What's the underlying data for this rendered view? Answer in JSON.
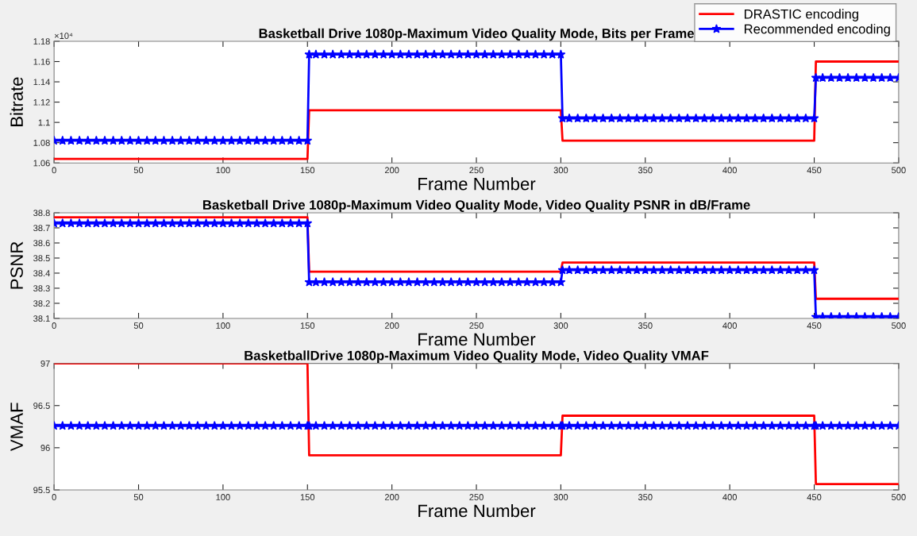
{
  "chart_data": [
    {
      "type": "line",
      "title": "Basketball Drive 1080p-Maximum Video Quality Mode, Bits per Frame",
      "xlabel": "Frame Number",
      "ylabel": "Bitrate",
      "annotations": [
        "×10⁴"
      ],
      "legend": "top right",
      "xlim": [
        0,
        500
      ],
      "xticks": [
        0,
        50,
        100,
        150,
        200,
        250,
        300,
        350,
        400,
        450,
        500
      ],
      "ylim": [
        1.06,
        1.18
      ],
      "yticks": [
        1.06,
        1.08,
        1.1,
        1.12,
        1.14,
        1.16,
        1.18
      ],
      "series": [
        {
          "name": "DRASTIC encoding",
          "color": "#ff0000",
          "marker": "none",
          "x": [
            0,
            150,
            151,
            300,
            301,
            450,
            451,
            500
          ],
          "values": [
            1.064,
            1.064,
            1.112,
            1.112,
            1.082,
            1.082,
            1.16,
            1.16
          ]
        },
        {
          "name": "Recommended encoding",
          "color": "#0000ff",
          "marker": "star",
          "x": [
            0,
            5,
            10,
            15,
            20,
            25,
            30,
            35,
            40,
            45,
            50,
            55,
            60,
            65,
            70,
            75,
            80,
            85,
            90,
            95,
            100,
            105,
            110,
            115,
            120,
            125,
            130,
            135,
            140,
            145,
            150,
            151,
            155,
            160,
            165,
            170,
            175,
            180,
            185,
            190,
            195,
            200,
            205,
            210,
            215,
            220,
            225,
            230,
            235,
            240,
            245,
            250,
            255,
            260,
            265,
            270,
            275,
            280,
            285,
            290,
            295,
            300,
            301,
            305,
            310,
            315,
            320,
            325,
            330,
            335,
            340,
            345,
            350,
            355,
            360,
            365,
            370,
            375,
            380,
            385,
            390,
            395,
            400,
            405,
            410,
            415,
            420,
            425,
            430,
            435,
            440,
            445,
            450,
            451,
            455,
            460,
            465,
            470,
            475,
            480,
            485,
            490,
            495,
            500
          ],
          "values": [
            1.082,
            1.082,
            1.082,
            1.082,
            1.082,
            1.082,
            1.082,
            1.082,
            1.082,
            1.082,
            1.082,
            1.082,
            1.082,
            1.082,
            1.082,
            1.082,
            1.082,
            1.082,
            1.082,
            1.082,
            1.082,
            1.082,
            1.082,
            1.082,
            1.082,
            1.082,
            1.082,
            1.082,
            1.082,
            1.082,
            1.082,
            1.167,
            1.167,
            1.167,
            1.167,
            1.167,
            1.167,
            1.167,
            1.167,
            1.167,
            1.167,
            1.167,
            1.167,
            1.167,
            1.167,
            1.167,
            1.167,
            1.167,
            1.167,
            1.167,
            1.167,
            1.167,
            1.167,
            1.167,
            1.167,
            1.167,
            1.167,
            1.167,
            1.167,
            1.167,
            1.167,
            1.167,
            1.104,
            1.104,
            1.104,
            1.104,
            1.104,
            1.104,
            1.104,
            1.104,
            1.104,
            1.104,
            1.104,
            1.104,
            1.104,
            1.104,
            1.104,
            1.104,
            1.104,
            1.104,
            1.104,
            1.104,
            1.104,
            1.104,
            1.104,
            1.104,
            1.104,
            1.104,
            1.104,
            1.104,
            1.104,
            1.104,
            1.104,
            1.144,
            1.144,
            1.144,
            1.144,
            1.144,
            1.144,
            1.144,
            1.144,
            1.144,
            1.144,
            1.144
          ]
        }
      ]
    },
    {
      "type": "line",
      "title": "Basketball Drive 1080p-Maximum Video Quality Mode, Video Quality PSNR in dB/Frame",
      "xlabel": "Frame Number",
      "ylabel": "PSNR",
      "xlim": [
        0,
        500
      ],
      "xticks": [
        0,
        50,
        100,
        150,
        200,
        250,
        300,
        350,
        400,
        450,
        500
      ],
      "ylim": [
        38.1,
        38.8
      ],
      "yticks": [
        38.1,
        38.2,
        38.3,
        38.4,
        38.5,
        38.6,
        38.7,
        38.8
      ],
      "series": [
        {
          "color": "#ff0000",
          "marker": "none",
          "x": [
            0,
            150,
            151,
            300,
            301,
            450,
            451,
            500
          ],
          "values": [
            38.77,
            38.77,
            38.41,
            38.41,
            38.47,
            38.47,
            38.23,
            38.23
          ]
        },
        {
          "color": "#0000ff",
          "marker": "star",
          "x": [
            0,
            5,
            10,
            15,
            20,
            25,
            30,
            35,
            40,
            45,
            50,
            55,
            60,
            65,
            70,
            75,
            80,
            85,
            90,
            95,
            100,
            105,
            110,
            115,
            120,
            125,
            130,
            135,
            140,
            145,
            150,
            151,
            155,
            160,
            165,
            170,
            175,
            180,
            185,
            190,
            195,
            200,
            205,
            210,
            215,
            220,
            225,
            230,
            235,
            240,
            245,
            250,
            255,
            260,
            265,
            270,
            275,
            280,
            285,
            290,
            295,
            300,
            301,
            305,
            310,
            315,
            320,
            325,
            330,
            335,
            340,
            345,
            350,
            355,
            360,
            365,
            370,
            375,
            380,
            385,
            390,
            395,
            400,
            405,
            410,
            415,
            420,
            425,
            430,
            435,
            440,
            445,
            450,
            451,
            455,
            460,
            465,
            470,
            475,
            480,
            485,
            490,
            495,
            500
          ],
          "values": [
            38.73,
            38.73,
            38.73,
            38.73,
            38.73,
            38.73,
            38.73,
            38.73,
            38.73,
            38.73,
            38.73,
            38.73,
            38.73,
            38.73,
            38.73,
            38.73,
            38.73,
            38.73,
            38.73,
            38.73,
            38.73,
            38.73,
            38.73,
            38.73,
            38.73,
            38.73,
            38.73,
            38.73,
            38.73,
            38.73,
            38.73,
            38.34,
            38.34,
            38.34,
            38.34,
            38.34,
            38.34,
            38.34,
            38.34,
            38.34,
            38.34,
            38.34,
            38.34,
            38.34,
            38.34,
            38.34,
            38.34,
            38.34,
            38.34,
            38.34,
            38.34,
            38.34,
            38.34,
            38.34,
            38.34,
            38.34,
            38.34,
            38.34,
            38.34,
            38.34,
            38.34,
            38.34,
            38.42,
            38.42,
            38.42,
            38.42,
            38.42,
            38.42,
            38.42,
            38.42,
            38.42,
            38.42,
            38.42,
            38.42,
            38.42,
            38.42,
            38.42,
            38.42,
            38.42,
            38.42,
            38.42,
            38.42,
            38.42,
            38.42,
            38.42,
            38.42,
            38.42,
            38.42,
            38.42,
            38.42,
            38.42,
            38.42,
            38.42,
            38.11,
            38.11,
            38.11,
            38.11,
            38.11,
            38.11,
            38.11,
            38.11,
            38.11,
            38.11,
            38.11
          ]
        }
      ]
    },
    {
      "type": "line",
      "title": "BasketballDrive 1080p-Maximum Video Quality Mode, Video Quality VMAF",
      "xlabel": "Frame Number",
      "ylabel": "VMAF",
      "xlim": [
        0,
        500
      ],
      "xticks": [
        0,
        50,
        100,
        150,
        200,
        250,
        300,
        350,
        400,
        450,
        500
      ],
      "ylim": [
        95.5,
        97
      ],
      "yticks": [
        95.5,
        96,
        96.5,
        97
      ],
      "series": [
        {
          "color": "#ff0000",
          "marker": "none",
          "x": [
            0,
            150,
            151,
            300,
            301,
            450,
            451,
            500
          ],
          "values": [
            97,
            97,
            95.91,
            95.91,
            96.38,
            96.38,
            95.57,
            95.57
          ]
        },
        {
          "color": "#0000ff",
          "marker": "star",
          "x": [
            0,
            5,
            10,
            15,
            20,
            25,
            30,
            35,
            40,
            45,
            50,
            55,
            60,
            65,
            70,
            75,
            80,
            85,
            90,
            95,
            100,
            105,
            110,
            115,
            120,
            125,
            130,
            135,
            140,
            145,
            150,
            151,
            155,
            160,
            165,
            170,
            175,
            180,
            185,
            190,
            195,
            200,
            205,
            210,
            215,
            220,
            225,
            230,
            235,
            240,
            245,
            250,
            255,
            260,
            265,
            270,
            275,
            280,
            285,
            290,
            295,
            300,
            301,
            305,
            310,
            315,
            320,
            325,
            330,
            335,
            340,
            345,
            350,
            355,
            360,
            365,
            370,
            375,
            380,
            385,
            390,
            395,
            400,
            405,
            410,
            415,
            420,
            425,
            430,
            435,
            440,
            445,
            450,
            451,
            455,
            460,
            465,
            470,
            475,
            480,
            485,
            490,
            495,
            500
          ],
          "values": [
            96.26,
            96.26,
            96.26,
            96.26,
            96.26,
            96.26,
            96.26,
            96.26,
            96.26,
            96.26,
            96.26,
            96.26,
            96.26,
            96.26,
            96.26,
            96.26,
            96.26,
            96.26,
            96.26,
            96.26,
            96.26,
            96.26,
            96.26,
            96.26,
            96.26,
            96.26,
            96.26,
            96.26,
            96.26,
            96.26,
            96.26,
            96.26,
            96.26,
            96.26,
            96.26,
            96.26,
            96.26,
            96.26,
            96.26,
            96.26,
            96.26,
            96.26,
            96.26,
            96.26,
            96.26,
            96.26,
            96.26,
            96.26,
            96.26,
            96.26,
            96.26,
            96.26,
            96.26,
            96.26,
            96.26,
            96.26,
            96.26,
            96.26,
            96.26,
            96.26,
            96.26,
            96.26,
            96.26,
            96.26,
            96.26,
            96.26,
            96.26,
            96.26,
            96.26,
            96.26,
            96.26,
            96.26,
            96.26,
            96.26,
            96.26,
            96.26,
            96.26,
            96.26,
            96.26,
            96.26,
            96.26,
            96.26,
            96.26,
            96.26,
            96.26,
            96.26,
            96.26,
            96.26,
            96.26,
            96.26,
            96.26,
            96.26,
            96.26,
            96.26,
            96.26,
            96.26,
            96.26,
            96.26,
            96.26,
            96.26,
            96.26,
            96.26,
            96.26,
            96.26
          ]
        }
      ]
    }
  ]
}
